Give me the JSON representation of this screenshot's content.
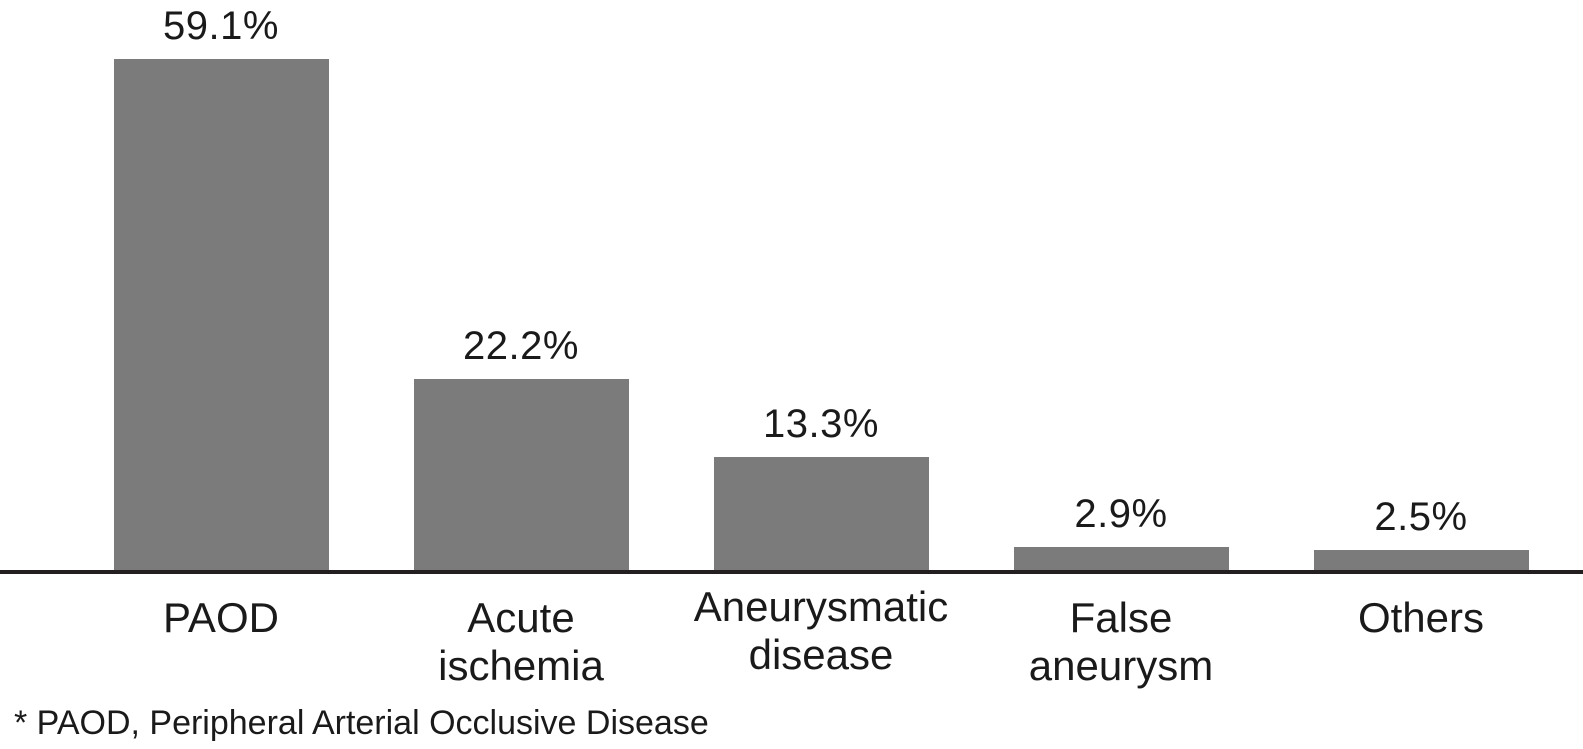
{
  "chart_data": {
    "type": "bar",
    "title": "",
    "xlabel": "",
    "ylabel": "",
    "unit": "%",
    "categories": [
      "PAOD",
      "Acute\nischemia",
      "Aneurysmatic\ndisease",
      "False\naneurysm",
      "Others"
    ],
    "values": [
      59.1,
      22.2,
      13.3,
      2.9,
      2.5
    ],
    "value_labels": [
      "59.1%",
      "22.2%",
      "13.3%",
      "2.9%",
      "2.5%"
    ],
    "ylim": [
      0,
      66
    ],
    "grid": false,
    "legend": false,
    "axis_shown": "x-baseline-only",
    "bar_color": "#7b7b7b",
    "axis_color": "#231f20",
    "text_color": "#1a1a1a",
    "background_color": "#ffffff",
    "footnote": "* PAOD, Peripheral Arterial Occlusive Disease"
  }
}
